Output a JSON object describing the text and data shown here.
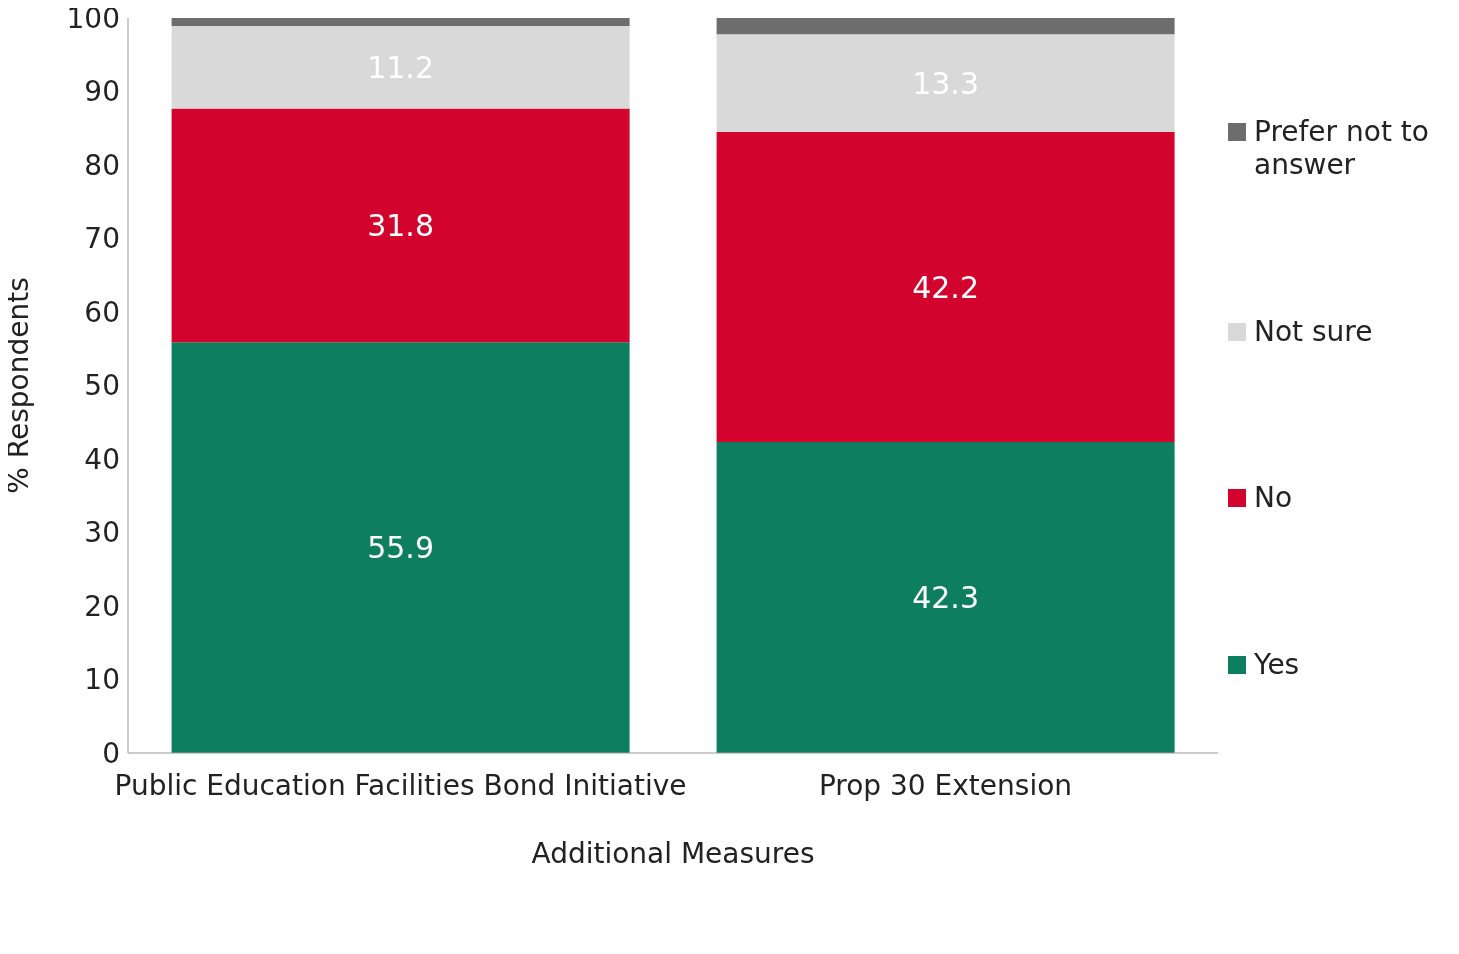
{
  "chart_data": {
    "type": "bar",
    "stacked": true,
    "xlabel": "Additional Measures",
    "ylabel": "% Respondents",
    "categories": [
      "Public Education Facilities Bond Initiative",
      "Prop 30 Extension"
    ],
    "series": [
      {
        "name": "Yes",
        "color": "#0e7f5e",
        "values": [
          55.9,
          42.3
        ],
        "value_labels": [
          "55.9",
          "42.3"
        ]
      },
      {
        "name": "No",
        "color": "#d2042d",
        "values": [
          31.8,
          42.2
        ],
        "value_labels": [
          "31.8",
          "42.2"
        ]
      },
      {
        "name": "Not sure",
        "color": "#d9d9d9",
        "values": [
          11.2,
          13.3
        ],
        "value_labels": [
          "11.2",
          "13.3"
        ]
      },
      {
        "name": "Prefer not to answer",
        "color": "#6d6d6d",
        "values": [
          1.1,
          2.2
        ]
      }
    ],
    "ylim": [
      0,
      100
    ],
    "yticks": [
      0,
      10,
      20,
      30,
      40,
      50,
      60,
      70,
      80,
      90,
      100
    ],
    "grid": false,
    "legend": "right"
  }
}
